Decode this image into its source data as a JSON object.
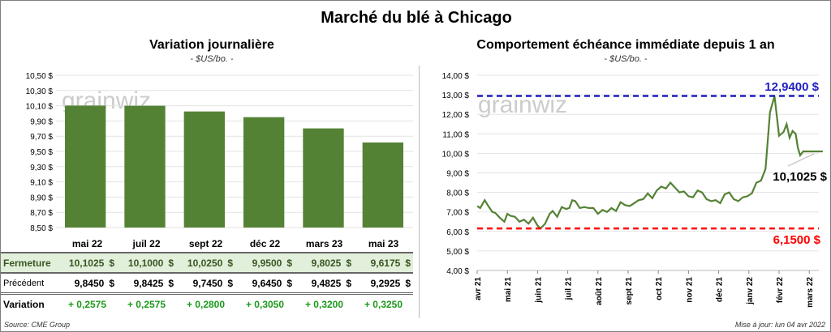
{
  "title": "Marché du blé à Chicago",
  "watermark": "grainwiz",
  "source": "Source: CME Group",
  "updated": "Mise à jour: lun 04 avr 2022",
  "colors": {
    "bar": "#548235",
    "line": "#548235",
    "max": "#1f1fbf",
    "min": "#ff0000"
  },
  "table": {
    "months": [
      "mai 22",
      "juil 22",
      "sept 22",
      "déc 22",
      "mars 23",
      "mai 23"
    ],
    "rows": [
      {
        "label": "Fermeture",
        "values": [
          "10,1025",
          "10,1000",
          "10,0250",
          "9,9500",
          "9,8025",
          "9,6175"
        ],
        "unit": "$"
      },
      {
        "label": "Précédent",
        "values": [
          "9,8450",
          "9,8425",
          "9,7450",
          "9,6450",
          "9,4825",
          "9,2925"
        ],
        "unit": "$"
      },
      {
        "label": "Variation",
        "values": [
          "+ 0,2575",
          "+ 0,2575",
          "+ 0,2800",
          "+ 0,3050",
          "+ 0,3200",
          "+ 0,3250"
        ]
      }
    ]
  },
  "chart_data": [
    {
      "type": "bar",
      "title": "Variation journalière",
      "subtitle": "- $US/bo. -",
      "categories": [
        "mai 22",
        "juil 22",
        "sept 22",
        "déc 22",
        "mars 23",
        "mai 23"
      ],
      "values": [
        10.1025,
        10.1,
        10.025,
        9.95,
        9.8025,
        9.6175
      ],
      "ylim": [
        8.5,
        10.5
      ],
      "yticks": [
        "8,50 $",
        "8,70 $",
        "8,90 $",
        "9,10 $",
        "9,30 $",
        "9,50 $",
        "9,70 $",
        "9,90 $",
        "10,10 $",
        "10,30 $",
        "10,50 $"
      ],
      "grid": true
    },
    {
      "type": "line",
      "title": "Comportement  échéance immédiate depuis 1 an",
      "subtitle": "- $US/bo. -",
      "ylim": [
        4,
        14
      ],
      "yticks": [
        "4,00 $",
        "5,00 $",
        "6,00 $",
        "7,00 $",
        "8,00 $",
        "9,00 $",
        "10,00 $",
        "11,00 $",
        "12,00 $",
        "13,00 $",
        "14,00 $"
      ],
      "xticks": [
        "avr 21",
        "mai 21",
        "juin 21",
        "juil 21",
        "août 21",
        "sept 21",
        "oct 21",
        "nov 21",
        "déc 21",
        "janv 22",
        "févr 22",
        "mars 22"
      ],
      "series": [
        {
          "x": [
            0,
            0.1,
            0.25,
            0.35,
            0.5,
            0.6,
            0.75,
            0.9,
            1.0,
            1.1,
            1.25,
            1.4,
            1.55,
            1.7,
            1.85,
            2.0,
            2.1,
            2.25,
            2.4,
            2.5,
            2.65,
            2.8,
            2.95,
            3.05,
            3.15,
            3.25,
            3.4,
            3.55,
            3.7,
            3.85,
            4.0,
            4.15,
            4.3,
            4.45,
            4.6,
            4.75,
            4.9,
            5.05,
            5.2,
            5.35,
            5.5,
            5.65,
            5.8,
            5.95,
            6.1,
            6.25,
            6.4,
            6.55,
            6.7,
            6.85,
            7.0,
            7.15,
            7.3,
            7.45,
            7.6,
            7.75,
            7.9,
            8.05,
            8.2,
            8.35,
            8.5,
            8.65,
            8.8,
            8.95,
            9.1,
            9.25,
            9.4,
            9.55,
            9.7,
            9.85,
            10.0,
            10.15,
            10.25,
            10.35,
            10.45,
            10.55,
            10.62,
            10.7,
            10.8,
            10.9,
            11.0,
            11.05,
            11.15,
            11.25,
            11.35,
            11.45
          ],
          "y": [
            7.3,
            7.2,
            7.6,
            7.35,
            7.0,
            6.95,
            6.7,
            6.5,
            6.9,
            6.8,
            6.75,
            6.5,
            6.6,
            6.4,
            6.7,
            6.3,
            6.15,
            6.4,
            6.9,
            7.05,
            6.75,
            7.25,
            7.15,
            7.2,
            7.6,
            7.55,
            7.2,
            7.25,
            7.2,
            7.2,
            6.9,
            7.1,
            7.0,
            7.2,
            7.05,
            7.5,
            7.35,
            7.3,
            7.45,
            7.6,
            7.65,
            7.95,
            7.7,
            8.1,
            8.3,
            8.2,
            8.5,
            8.25,
            8.0,
            8.05,
            7.8,
            7.75,
            8.1,
            8.0,
            7.65,
            7.55,
            7.6,
            7.45,
            7.9,
            8.0,
            7.65,
            7.55,
            7.75,
            7.8,
            7.95,
            8.5,
            8.6,
            9.2,
            12.1,
            12.94,
            10.9,
            11.1,
            11.5,
            10.8,
            11.15,
            11.0,
            10.3,
            9.9,
            10.1025,
            10.1,
            10.1,
            10.1,
            10.1,
            10.1,
            10.1,
            10.1
          ],
          "color": "#548235"
        }
      ],
      "annotations": [
        {
          "label": "12,9400 $",
          "value": 12.94,
          "color": "#1f1fbf"
        },
        {
          "label": "6,1500 $",
          "value": 6.15,
          "color": "#ff0000"
        },
        {
          "label": "10,1025 $",
          "value": 10.1025
        }
      ],
      "grid": true
    }
  ]
}
